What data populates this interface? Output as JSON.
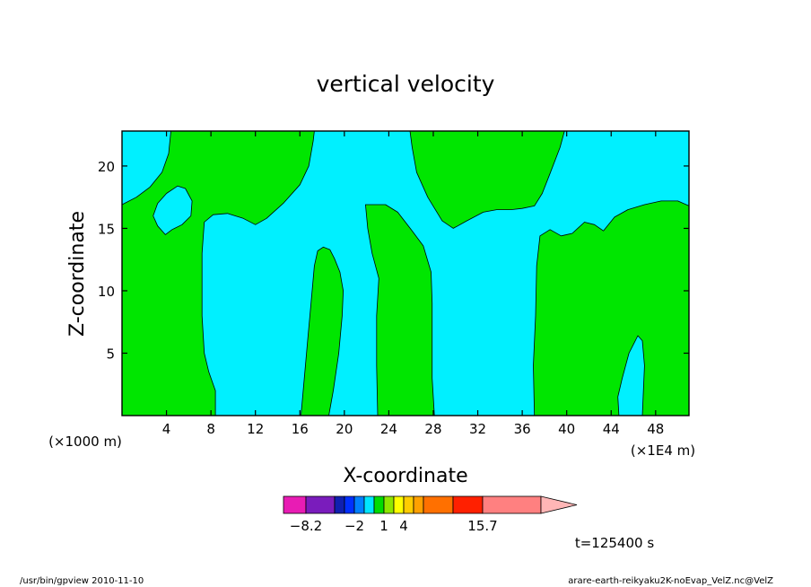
{
  "chart_data": {
    "type": "heatmap",
    "title": "vertical velocity",
    "xlabel": "X-coordinate",
    "ylabel": "Z-coordinate",
    "x_multiplier_left": "(×1000 m)",
    "x_multiplier_right": "(×1E4 m)",
    "x_ticks": [
      "4",
      "8",
      "12",
      "16",
      "20",
      "24",
      "28",
      "32",
      "36",
      "40",
      "44",
      "48"
    ],
    "y_ticks": [
      "5",
      "10",
      "15",
      "20"
    ],
    "xlim": [
      0,
      51
    ],
    "ylim": [
      0,
      22.8
    ],
    "colors": {
      "background_field": "#00f0ff",
      "field": "#00e600",
      "contour": "#000000"
    },
    "regions": [
      {
        "level": "green",
        "points": [
          [
            0,
            0
          ],
          [
            8.4,
            0
          ],
          [
            8.4,
            2
          ],
          [
            7.8,
            3.5
          ],
          [
            7.4,
            5
          ],
          [
            7.2,
            8
          ],
          [
            7.2,
            13
          ],
          [
            7.4,
            15.5
          ],
          [
            8.2,
            16.1
          ],
          [
            9.5,
            16.2
          ],
          [
            10.9,
            15.8
          ],
          [
            12,
            15.3
          ],
          [
            13,
            15.8
          ],
          [
            14.5,
            17
          ],
          [
            16,
            18.5
          ],
          [
            16.8,
            20
          ],
          [
            17.2,
            22
          ],
          [
            17.3,
            22.8
          ],
          [
            4.4,
            22.8
          ],
          [
            4.2,
            21
          ],
          [
            3.6,
            19.5
          ],
          [
            2.5,
            18.3
          ],
          [
            1.3,
            17.5
          ],
          [
            0,
            16.9
          ]
        ]
      },
      {
        "level": "cyan",
        "points": [
          [
            2.8,
            16
          ],
          [
            3.2,
            15.2
          ],
          [
            3.9,
            14.5
          ],
          [
            4.5,
            14.9
          ],
          [
            5.4,
            15.3
          ],
          [
            6.2,
            16
          ],
          [
            6.3,
            17.2
          ],
          [
            5.7,
            18.2
          ],
          [
            5,
            18.4
          ],
          [
            4,
            17.8
          ],
          [
            3.2,
            17
          ]
        ]
      },
      {
        "level": "green",
        "points": [
          [
            16.1,
            0
          ],
          [
            18.6,
            0
          ],
          [
            19,
            2
          ],
          [
            19.5,
            5
          ],
          [
            19.8,
            8
          ],
          [
            19.9,
            10
          ],
          [
            19.6,
            11.5
          ],
          [
            19.1,
            12.6
          ],
          [
            18.7,
            13.3
          ],
          [
            18.1,
            13.5
          ],
          [
            17.6,
            13.2
          ],
          [
            17.3,
            12
          ],
          [
            17,
            9
          ],
          [
            16.7,
            6
          ],
          [
            16.4,
            3
          ]
        ]
      },
      {
        "level": "green",
        "points": [
          [
            23,
            0
          ],
          [
            28.1,
            0
          ],
          [
            27.9,
            3
          ],
          [
            27.9,
            9
          ],
          [
            27.8,
            11.5
          ],
          [
            27.1,
            13.6
          ],
          [
            26.1,
            14.8
          ],
          [
            24.8,
            16.3
          ],
          [
            23.7,
            16.9
          ],
          [
            21.9,
            16.9
          ],
          [
            22.1,
            15
          ],
          [
            22.5,
            13
          ],
          [
            23.1,
            11
          ],
          [
            22.9,
            8
          ],
          [
            22.9,
            4
          ]
        ]
      },
      {
        "level": "green",
        "points": [
          [
            25.9,
            22.8
          ],
          [
            39.8,
            22.8
          ],
          [
            39.4,
            21.5
          ],
          [
            38.5,
            19.4
          ],
          [
            37.8,
            17.8
          ],
          [
            37.1,
            16.8
          ],
          [
            36,
            16.6
          ],
          [
            35,
            16.5
          ],
          [
            33.7,
            16.5
          ],
          [
            32.5,
            16.3
          ],
          [
            31,
            15.6
          ],
          [
            29.8,
            15
          ],
          [
            28.8,
            15.6
          ],
          [
            27.5,
            17.5
          ],
          [
            26.5,
            19.5
          ],
          [
            26.1,
            21.5
          ]
        ]
      },
      {
        "level": "green",
        "points": [
          [
            37.1,
            0
          ],
          [
            51,
            0
          ],
          [
            51,
            16.8
          ],
          [
            50,
            17.2
          ],
          [
            48.5,
            17.2
          ],
          [
            47,
            16.9
          ],
          [
            45.5,
            16.5
          ],
          [
            44.3,
            15.9
          ],
          [
            43.3,
            14.8
          ],
          [
            42.5,
            15.3
          ],
          [
            41.6,
            15.5
          ],
          [
            40.5,
            14.6
          ],
          [
            39.5,
            14.4
          ],
          [
            38.5,
            14.9
          ],
          [
            37.6,
            14.4
          ],
          [
            37.3,
            12
          ],
          [
            37.2,
            8
          ],
          [
            37,
            4
          ]
        ]
      },
      {
        "level": "cyan",
        "points": [
          [
            44.7,
            0
          ],
          [
            46.8,
            0
          ],
          [
            46.9,
            2
          ],
          [
            47,
            4
          ],
          [
            46.8,
            6
          ],
          [
            46.4,
            6.4
          ],
          [
            45.6,
            5
          ],
          [
            45,
            3
          ],
          [
            44.6,
            1.5
          ]
        ]
      }
    ],
    "colorbar": {
      "tick_labels": [
        "−8.2",
        "−2",
        "1",
        "4",
        "15.7"
      ],
      "segments": [
        "#e81cb4",
        "#7a1cbc",
        "#1020b0",
        "#0030ff",
        "#0080ff",
        "#00e6ff",
        "#00dc00",
        "#8ee600",
        "#ffff00",
        "#ffcc00",
        "#ffa000",
        "#ff7000",
        "#ff2000",
        "#ff8080"
      ],
      "extension_color": "#ffb6b6"
    },
    "time_label": "t=125400 s"
  },
  "footer": {
    "left": "/usr/bin/gpview  2010-11-10",
    "right": "arare-earth-reikyaku2K-noEvap_VelZ.nc@VelZ"
  }
}
